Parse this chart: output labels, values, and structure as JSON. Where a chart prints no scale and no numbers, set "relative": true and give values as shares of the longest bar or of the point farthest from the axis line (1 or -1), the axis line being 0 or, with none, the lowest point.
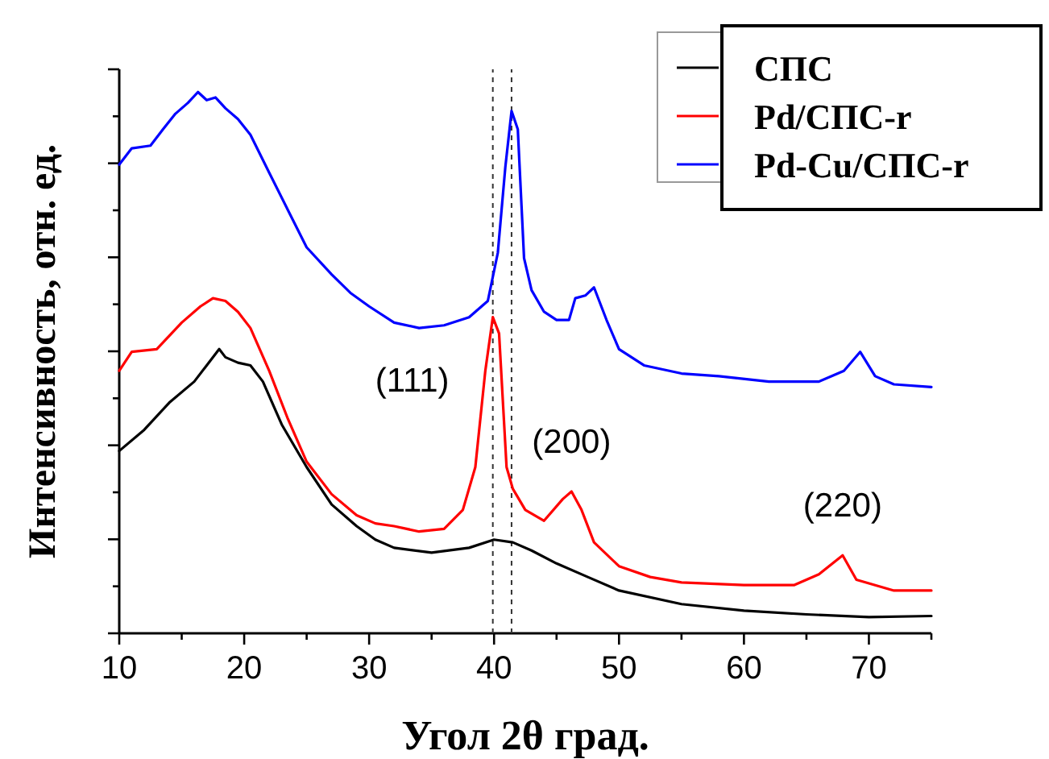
{
  "chart_data": {
    "type": "line",
    "relative": true,
    "xlabel": "Угол 2θ град.",
    "ylabel": "Интенсивность, отн. ед.",
    "xlim": [
      10,
      75
    ],
    "xticks": [
      10,
      {
        "value": 15,
        "label": null
      },
      20,
      {
        "value": 25,
        "label": null
      },
      30,
      {
        "value": 35,
        "label": null
      },
      40,
      {
        "value": 45,
        "label": null
      },
      50,
      {
        "value": 55,
        "label": null
      },
      60,
      {
        "value": 65,
        "label": null
      },
      70,
      {
        "value": 75,
        "label": null
      }
    ],
    "tick_labels": "x",
    "grid": false,
    "legend": "top right",
    "marker": "none",
    "line_style": "solid",
    "ref_lines": [
      {
        "axis": "x",
        "value": 39.9,
        "color": "#333333",
        "line_style": "dashed"
      },
      {
        "axis": "x",
        "value": 41.4,
        "color": "#333333",
        "line_style": "dashed"
      }
    ],
    "annotations": [
      {
        "text": "(111)",
        "x": 39.9,
        "y": 0.584
      },
      {
        "text": "(200)",
        "x": 46.2,
        "y": 0.262
      },
      {
        "text": "(220)",
        "x": 67.9,
        "y": 0.144
      }
    ],
    "series": [
      {
        "name": "СПС",
        "color": "#000000",
        "x": [
          10,
          12,
          14,
          16,
          17,
          18,
          18.5,
          19.5,
          20.5,
          21.5,
          23,
          25,
          27,
          29,
          30.5,
          32,
          35,
          38,
          40,
          41.5,
          43,
          45,
          47.5,
          50,
          55,
          60,
          65,
          70,
          75
        ],
        "values": [
          0.337,
          0.376,
          0.426,
          0.465,
          0.495,
          0.525,
          0.51,
          0.5,
          0.495,
          0.465,
          0.386,
          0.307,
          0.238,
          0.198,
          0.173,
          0.158,
          0.149,
          0.158,
          0.173,
          0.168,
          0.153,
          0.129,
          0.104,
          0.079,
          0.054,
          0.042,
          0.035,
          0.03,
          0.032
        ]
      },
      {
        "name": "Pd/СПС-r",
        "color": "#ff0000",
        "x": [
          10,
          11,
          13,
          15,
          16.5,
          17.5,
          18.5,
          19.5,
          20.5,
          22,
          23.5,
          25,
          27,
          29,
          30.5,
          32,
          34,
          36,
          37.5,
          38.5,
          39.3,
          39.9,
          40.4,
          41,
          41.5,
          42.5,
          44,
          45.5,
          46.2,
          47,
          48,
          50,
          52.5,
          55,
          60,
          64,
          66,
          67.9,
          69,
          72,
          75
        ],
        "values": [
          0.485,
          0.52,
          0.525,
          0.574,
          0.604,
          0.619,
          0.614,
          0.594,
          0.564,
          0.485,
          0.396,
          0.317,
          0.257,
          0.218,
          0.203,
          0.198,
          0.188,
          0.193,
          0.228,
          0.307,
          0.485,
          0.584,
          0.554,
          0.307,
          0.267,
          0.228,
          0.208,
          0.248,
          0.262,
          0.228,
          0.168,
          0.124,
          0.104,
          0.094,
          0.089,
          0.089,
          0.109,
          0.144,
          0.099,
          0.079,
          0.079
        ]
      },
      {
        "name": "Pd-Cu/СПС-r",
        "color": "#0000ff",
        "x": [
          10,
          11,
          12.5,
          13.5,
          14.5,
          15.5,
          16.3,
          17,
          17.7,
          18.5,
          19.5,
          20.5,
          22,
          23.5,
          25,
          27,
          28.5,
          30,
          32,
          34,
          36,
          38,
          39.5,
          40.3,
          40.9,
          41.4,
          41.9,
          42.4,
          43,
          44,
          45,
          46,
          46.5,
          47.3,
          48,
          49,
          50,
          52,
          55,
          58,
          62,
          66,
          68,
          69.3,
          70.5,
          72,
          75
        ],
        "values": [
          0.866,
          0.896,
          0.901,
          0.931,
          0.96,
          0.98,
          1,
          0.985,
          0.99,
          0.97,
          0.95,
          0.921,
          0.851,
          0.782,
          0.713,
          0.663,
          0.629,
          0.604,
          0.574,
          0.564,
          0.569,
          0.584,
          0.614,
          0.703,
          0.861,
          0.965,
          0.931,
          0.693,
          0.634,
          0.594,
          0.579,
          0.579,
          0.619,
          0.624,
          0.639,
          0.579,
          0.525,
          0.495,
          0.48,
          0.475,
          0.465,
          0.465,
          0.485,
          0.52,
          0.475,
          0.46,
          0.455
        ]
      }
    ]
  }
}
